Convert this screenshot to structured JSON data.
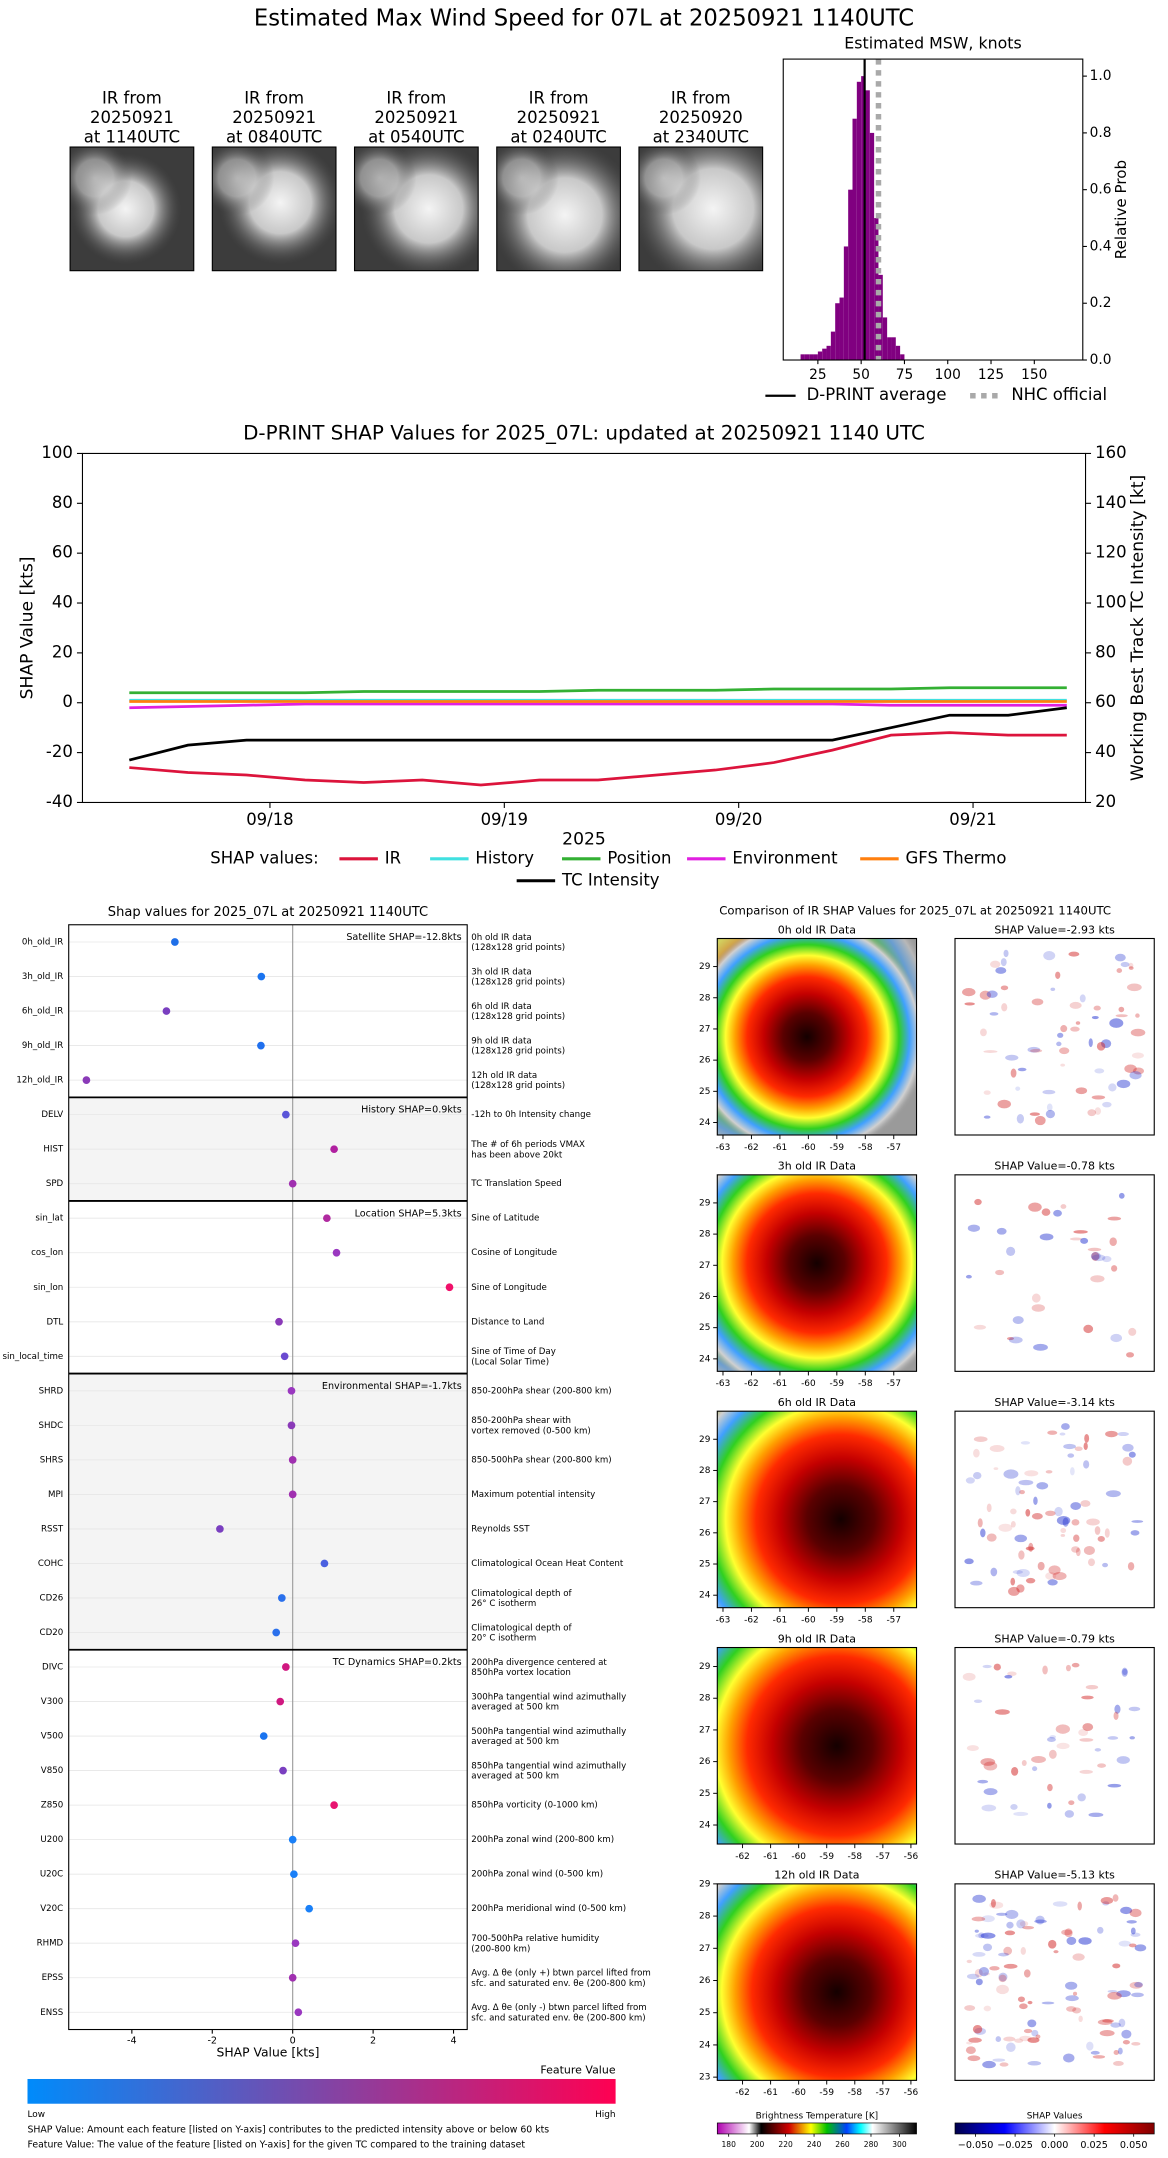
{
  "title": "Estimated Max Wind Speed for 07L at 20250921 1140UTC",
  "ir_images": [
    {
      "label": "IR from\n20250921\nat 1140UTC"
    },
    {
      "label": "IR from\n20250921\nat 0840UTC"
    },
    {
      "label": "IR from\n20250921\nat 0540UTC"
    },
    {
      "label": "IR from\n20250921\nat 0240UTC"
    },
    {
      "label": "IR from\n20250920\nat 2340UTC"
    }
  ],
  "chart_data": [
    {
      "type": "histogram",
      "title": "Estimated MSW, knots",
      "ylabel": "Relative Prob",
      "color": "#800080",
      "bins": [
        15,
        17.5,
        20,
        22.5,
        25,
        27.5,
        30,
        32.5,
        35,
        37.5,
        40,
        42.5,
        45,
        47.5,
        50,
        52.5,
        55,
        57.5,
        60,
        62.5,
        65,
        67.5,
        70,
        72.5,
        75
      ],
      "values": [
        0.02,
        0.02,
        0.02,
        0.02,
        0.03,
        0.04,
        0.05,
        0.1,
        0.2,
        0.22,
        0.4,
        0.6,
        0.85,
        0.98,
        1.0,
        0.95,
        0.8,
        0.5,
        0.3,
        0.15,
        0.08,
        0.08,
        0.05,
        0.02
      ],
      "xlim": [
        5,
        178
      ],
      "ylim": [
        0,
        1.06
      ],
      "xticks": [
        25,
        50,
        75,
        100,
        125,
        150
      ],
      "yticks": [
        {
          "value": 0,
          "label": "0.0"
        },
        0.2,
        0.4,
        0.6,
        0.8,
        {
          "value": 1,
          "label": "1.0"
        }
      ],
      "lines": [
        {
          "name": "D-PRINT average",
          "value": 52,
          "color": "#000000",
          "style": "solid"
        },
        {
          "name": "NHC official",
          "value": 60,
          "color": "#a9a9a9",
          "style": "dotted"
        }
      ]
    },
    {
      "type": "line",
      "title": "D-PRINT SHAP Values for 2025_07L: updated at 20250921 1140 UTC",
      "xlabel": "2025",
      "ylabel": "SHAP Value [kts]",
      "y2label": "Working Best Track TC Intensity [kt]",
      "legend_title": "SHAP values:",
      "x": [
        17.4,
        17.65,
        17.9,
        18.15,
        18.4,
        18.65,
        18.9,
        19.15,
        19.4,
        19.65,
        19.9,
        20.15,
        20.4,
        20.65,
        20.9,
        21.15,
        21.4
      ],
      "xlim": [
        17.2,
        21.48
      ],
      "xticks": [
        {
          "value": 18,
          "label": "09/18"
        },
        {
          "value": 19,
          "label": "09/19"
        },
        {
          "value": 20,
          "label": "09/20"
        },
        {
          "value": 21,
          "label": "09/21"
        }
      ],
      "ylim": [
        -40,
        100
      ],
      "yticks": [
        -40,
        -20,
        0,
        20,
        40,
        60,
        80,
        100
      ],
      "y2lim": [
        20,
        160
      ],
      "y2ticks": [
        20,
        40,
        60,
        80,
        100,
        120,
        140,
        160
      ],
      "series": [
        {
          "name": "IR",
          "color": "#dc143c",
          "values": [
            -26,
            -28,
            -29,
            -31,
            -32,
            -31,
            -33,
            -31,
            -31,
            -29,
            -27,
            -24,
            -19,
            -13,
            -12,
            -13,
            -13
          ]
        },
        {
          "name": "History",
          "color": "#40e0e0",
          "values": [
            1,
            1,
            1,
            1,
            1,
            1,
            1,
            1,
            1,
            1,
            1,
            1,
            1,
            1,
            1,
            1,
            1
          ]
        },
        {
          "name": "Position",
          "color": "#33b033",
          "values": [
            4,
            4,
            4,
            4,
            4.5,
            4.5,
            4.5,
            4.5,
            5,
            5,
            5,
            5.5,
            5.5,
            5.5,
            6,
            6,
            6
          ]
        },
        {
          "name": "Environment",
          "color": "#e020e0",
          "values": [
            -2,
            -1.5,
            -1,
            -0.5,
            -0.5,
            -0.5,
            -0.5,
            -0.5,
            -0.5,
            -0.5,
            -0.5,
            -0.5,
            -0.5,
            -1,
            -1,
            -1,
            -1
          ]
        },
        {
          "name": "GFS Thermo",
          "color": "#ff7f0e",
          "values": [
            0.5,
            0.5,
            0.5,
            0.5,
            0.5,
            0.5,
            0.5,
            0.5,
            0.5,
            0.5,
            0.5,
            0.5,
            0.5,
            0.5,
            0.5,
            0.5,
            0.5
          ]
        },
        {
          "name": "TC Intensity",
          "color": "#000000",
          "axis": "y2",
          "values": [
            37,
            43,
            45,
            45,
            45,
            45,
            45,
            45,
            45,
            45,
            45,
            45,
            45,
            50,
            55,
            55,
            58
          ]
        }
      ]
    },
    {
      "type": "dot",
      "title": "Shap values for 2025_07L at 20250921 1140UTC",
      "xlabel": "SHAP Value [kts]",
      "xlim": [
        -5.57,
        4.34
      ],
      "xticks": [
        -4,
        -2,
        0,
        2,
        4
      ],
      "groups": [
        {
          "label": "Satellite SHAP=-12.8kts",
          "features": [
            {
              "name": "0h_old_IR",
              "value": -2.93,
              "color": "#1f6fe8",
              "description": "0h old IR data\n(128x128 grid points)"
            },
            {
              "name": "3h_old_IR",
              "value": -0.78,
              "color": "#1a74f0",
              "description": "3h old IR data\n(128x128 grid points)"
            },
            {
              "name": "6h_old_IR",
              "value": -3.14,
              "color": "#7a3fc0",
              "description": "6h old IR data\n(128x128 grid points)"
            },
            {
              "name": "9h_old_IR",
              "value": -0.79,
              "color": "#2070ee",
              "description": "9h old IR data\n(128x128 grid points)"
            },
            {
              "name": "12h_old_IR",
              "value": -5.13,
              "color": "#8a3ab8",
              "description": "12h old IR data\n(128x128 grid points)"
            }
          ]
        },
        {
          "label": "History SHAP=0.9kts",
          "features": [
            {
              "name": "DELV",
              "value": -0.17,
              "color": "#5a55d8",
              "description": "-12h to 0h Intensity change"
            },
            {
              "name": "HIST",
              "value": 1.03,
              "color": "#b020a0",
              "description": "The # of 6h periods VMAX\nhas been above 20kt"
            },
            {
              "name": "SPD",
              "value": 0.0,
              "color": "#a030b0",
              "description": "TC Translation Speed"
            }
          ]
        },
        {
          "label": "Location SHAP=5.3kts",
          "features": [
            {
              "name": "sin_lat",
              "value": 0.85,
              "color": "#b02aa0",
              "description": "Sine of Latitude"
            },
            {
              "name": "cos_lon",
              "value": 1.09,
              "color": "#9a38c0",
              "description": "Cosine of Longitude"
            },
            {
              "name": "sin_lon",
              "value": 3.9,
              "color": "#f0106a",
              "description": "Sine of Longitude"
            },
            {
              "name": "DTL",
              "value": -0.34,
              "color": "#8a3ab8",
              "description": "Distance to Land"
            },
            {
              "name": "sin_local_time",
              "value": -0.2,
              "color": "#6a4ad0",
              "description": "Sine of Time of Day\n(Local Solar Time)"
            }
          ]
        },
        {
          "label": "Environmental SHAP=-1.7kts",
          "features": [
            {
              "name": "SHRD",
              "value": -0.03,
              "color": "#9a38c0",
              "description": "850-200hPa shear (200-800 km)"
            },
            {
              "name": "SHDC",
              "value": -0.03,
              "color": "#8a3ab8",
              "description": "850-200hPa shear with\nvortex removed (0-500 km)"
            },
            {
              "name": "SHRS",
              "value": 0.0,
              "color": "#a030b0",
              "description": "850-500hPa shear (200-800 km)"
            },
            {
              "name": "MPI",
              "value": 0.0,
              "color": "#a030b0",
              "description": "Maximum potential intensity"
            },
            {
              "name": "RSST",
              "value": -1.81,
              "color": "#7a3fc0",
              "description": "Reynolds SST"
            },
            {
              "name": "COHC",
              "value": 0.79,
              "color": "#4a60e0",
              "description": "Climatological Ocean Heat Content"
            },
            {
              "name": "CD26",
              "value": -0.27,
              "color": "#2a70ec",
              "description": "Climatological depth of\n26° C isotherm"
            },
            {
              "name": "CD20",
              "value": -0.41,
              "color": "#2a70ec",
              "description": "Climatological depth of\n20° C isotherm"
            }
          ]
        },
        {
          "label": "TC Dynamics SHAP=0.2kts",
          "features": [
            {
              "name": "DIVC",
              "value": -0.17,
              "color": "#d01880",
              "description": "200hPa divergence centered at\n850hPa vortex location"
            },
            {
              "name": "V300",
              "value": -0.31,
              "color": "#d01880",
              "description": "300hPa tangential wind azimuthally\naveraged at 500 km"
            },
            {
              "name": "V500",
              "value": -0.72,
              "color": "#1a74f0",
              "description": "500hPa tangential wind azimuthally\naveraged at 500 km"
            },
            {
              "name": "V850",
              "value": -0.24,
              "color": "#7a3fc0",
              "description": "850hPa tangential wind azimuthally\naveraged at 500 km"
            },
            {
              "name": "Z850",
              "value": 1.03,
              "color": "#e81470",
              "description": "850hPa vorticity (0-1000 km)"
            },
            {
              "name": "U200",
              "value": 0.0,
              "color": "#1a80f8",
              "description": "200hPa zonal wind (200-800 km)"
            },
            {
              "name": "U20C",
              "value": 0.03,
              "color": "#1a80f8",
              "description": "200hPa zonal wind (0-500 km)"
            },
            {
              "name": "V20C",
              "value": 0.41,
              "color": "#1a80f8",
              "description": "200hPa meridional wind (0-500 km)"
            },
            {
              "name": "RHMD",
              "value": 0.07,
              "color": "#9a38c0",
              "description": "700-500hPa relative humidity\n(200-800 km)"
            },
            {
              "name": "EPSS",
              "value": 0.0,
              "color": "#a030b0",
              "description": "Avg. Δ θe (only +) btwn parcel lifted from\nsfc. and saturated env. θe (200-800 km)"
            },
            {
              "name": "ENSS",
              "value": 0.14,
              "color": "#9a38c0",
              "description": "Avg. Δ θe (only -) btwn parcel lifted from\nsfc. and saturated env. θe (200-800 km)"
            }
          ]
        }
      ],
      "colorbar": {
        "title": "Feature Value",
        "low": "Low",
        "high": "High",
        "colors": [
          "#008bfb",
          "#ff0052"
        ]
      },
      "notes": [
        "SHAP Value: Amount each feature [listed on Y-axis] contributes to the predicted intensity above or below 60 kts",
        "Feature Value: The value of the feature [listed on Y-axis] for the given TC compared to the training dataset"
      ]
    }
  ],
  "ir_comparison": {
    "title": "Comparison of IR SHAP Values for 2025_07L at 20250921 1140UTC",
    "panels": [
      {
        "ir_title": "0h old IR Data",
        "shap_title": "SHAP Value=-2.93 kts",
        "xlim": [
          -63.2,
          -56.2
        ],
        "ylim": [
          23.6,
          29.9
        ],
        "xticks": [
          -63,
          -62,
          -61,
          -60,
          -59,
          -58,
          -57
        ],
        "yticks": [
          24,
          25,
          26,
          27,
          28,
          29
        ]
      },
      {
        "ir_title": "3h old IR Data",
        "shap_title": "SHAP Value=-0.78 kts",
        "xlim": [
          -63.2,
          -56.2
        ],
        "ylim": [
          23.6,
          29.9
        ],
        "xticks": [
          -63,
          -62,
          -61,
          -60,
          -59,
          -58,
          -57
        ],
        "yticks": [
          24,
          25,
          26,
          27,
          28,
          29
        ]
      },
      {
        "ir_title": "6h old IR Data",
        "shap_title": "SHAP Value=-3.14 kts",
        "xlim": [
          -63.2,
          -56.2
        ],
        "ylim": [
          23.6,
          29.9
        ],
        "xticks": [
          -63,
          -62,
          -61,
          -60,
          -59,
          -58,
          -57
        ],
        "yticks": [
          24,
          25,
          26,
          27,
          28,
          29
        ]
      },
      {
        "ir_title": "9h old IR Data",
        "shap_title": "SHAP Value=-0.79 kts",
        "xlim": [
          -62.9,
          -55.8
        ],
        "ylim": [
          23.4,
          29.6
        ],
        "xticks": [
          -62,
          -61,
          -60,
          -59,
          -58,
          -57,
          -56
        ],
        "yticks": [
          24,
          25,
          26,
          27,
          28,
          29
        ]
      },
      {
        "ir_title": "12h old IR Data",
        "shap_title": "SHAP Value=-5.13 kts",
        "xlim": [
          -62.9,
          -55.8
        ],
        "ylim": [
          22.9,
          29.0
        ],
        "xticks": [
          -62,
          -61,
          -60,
          -59,
          -58,
          -57,
          -56
        ],
        "yticks": [
          23,
          24,
          25,
          26,
          27,
          28,
          29
        ]
      }
    ],
    "colorbars": [
      {
        "title": "Brightness Temperature [K]",
        "lim": [
          172,
          312
        ],
        "ticks": [
          180,
          200,
          220,
          240,
          260,
          280,
          300
        ]
      },
      {
        "title": "SHAP Values",
        "lim": [
          -0.063,
          0.063
        ],
        "ticks": [
          {
            "value": -0.05,
            "label": "−0.050"
          },
          {
            "value": -0.025,
            "label": "−0.025"
          },
          {
            "value": 0,
            "label": "0.000"
          },
          {
            "value": 0.025,
            "label": "0.025"
          },
          {
            "value": 0.05,
            "label": "0.050"
          }
        ]
      }
    ]
  }
}
